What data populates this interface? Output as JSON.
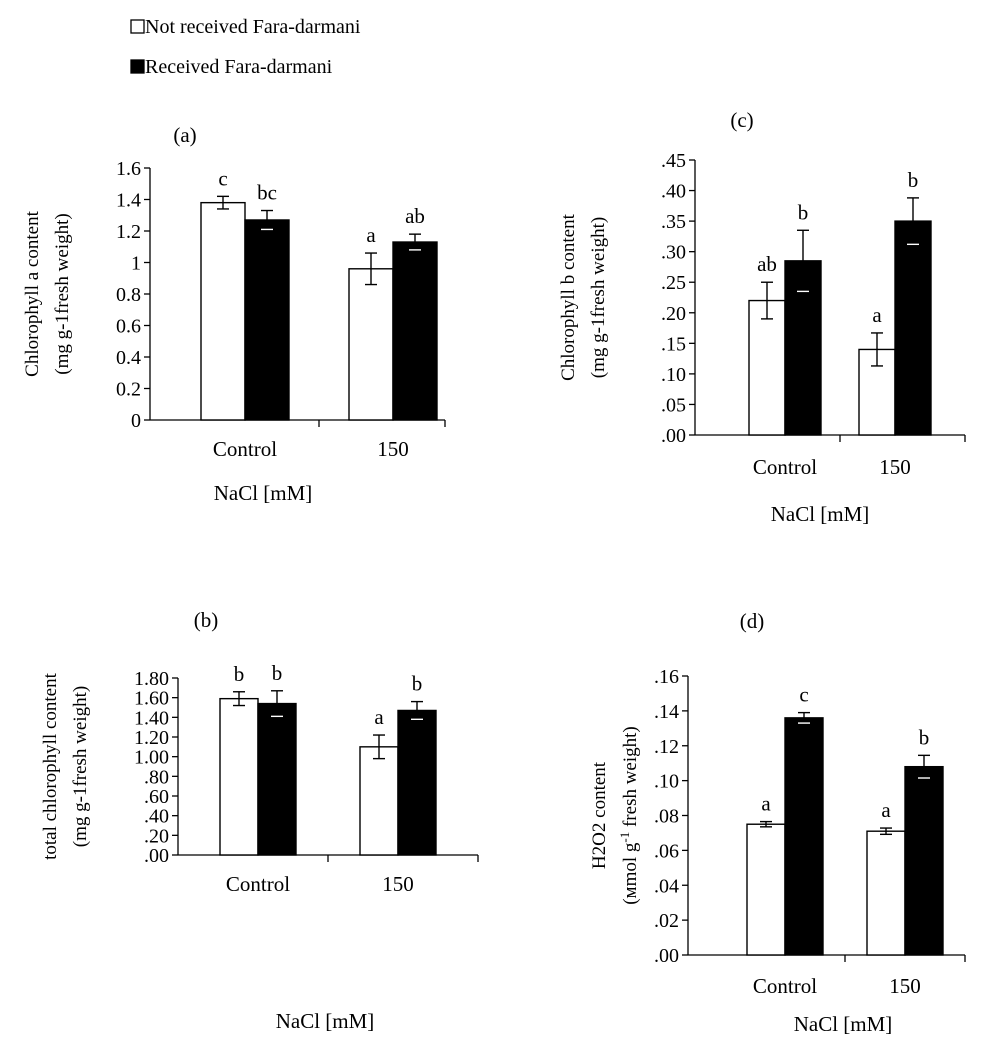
{
  "legend": [
    {
      "label": "Not received Fara-darmani",
      "color": "#ffffff"
    },
    {
      "label": "Received Fara-darmani",
      "color": "#000000"
    }
  ],
  "chart_data": [
    {
      "id": "a",
      "type": "bar",
      "panel_label": "(a)",
      "categories": [
        "Control",
        "150"
      ],
      "xlabel": "NaCl [mM]",
      "ylabel": [
        "Chlorophyll a content",
        "(mg g-1fresh weight)"
      ],
      "ylim": [
        0,
        1.6
      ],
      "yticks": [
        "0",
        "0.2",
        "0.4",
        "0.6",
        "0.8",
        "1",
        "1.2",
        "1.4",
        "1.6"
      ],
      "series": [
        {
          "name": "Not received Fara-darmani",
          "color": "#ffffff",
          "values": [
            1.38,
            0.96
          ],
          "errors": [
            0.04,
            0.1
          ],
          "letters": [
            "c",
            "a"
          ]
        },
        {
          "name": "Received Fara-darmani",
          "color": "#000000",
          "values": [
            1.27,
            1.13
          ],
          "errors": [
            0.06,
            0.05
          ],
          "letters": [
            "bc",
            "ab"
          ]
        }
      ]
    },
    {
      "id": "c",
      "type": "bar",
      "panel_label": "(c)",
      "categories": [
        "Control",
        "150"
      ],
      "xlabel": "NaCl [mM]",
      "ylabel": [
        "Chlorophyll  b content",
        "(mg g-1fresh weight)"
      ],
      "ylim": [
        0,
        0.45
      ],
      "yticks": [
        ".00",
        ".05",
        ".10",
        ".15",
        ".20",
        ".25",
        ".30",
        ".35",
        ".40",
        ".45"
      ],
      "series": [
        {
          "name": "Not received Fara-darmani",
          "color": "#ffffff",
          "values": [
            0.22,
            0.14
          ],
          "errors": [
            0.03,
            0.027
          ],
          "letters": [
            "ab",
            "a"
          ]
        },
        {
          "name": "Received Fara-darmani",
          "color": "#000000",
          "values": [
            0.285,
            0.35
          ],
          "errors": [
            0.05,
            0.038
          ],
          "letters": [
            "b",
            "b"
          ]
        }
      ]
    },
    {
      "id": "b",
      "type": "bar",
      "panel_label": "(b)",
      "categories": [
        "Control",
        "150"
      ],
      "xlabel": "NaCl [mM]",
      "ylabel": [
        "total chlorophyll content",
        "(mg g-1fresh weight)"
      ],
      "ylim": [
        0,
        1.8
      ],
      "yticks": [
        ".00",
        ".20",
        ".40",
        ".60",
        ".80",
        "1.00",
        "1.20",
        "1.40",
        "1.60",
        "1.80"
      ],
      "series": [
        {
          "name": "Not received Fara-darmani",
          "color": "#ffffff",
          "values": [
            1.59,
            1.1
          ],
          "errors": [
            0.07,
            0.12
          ],
          "letters": [
            "b",
            "a"
          ]
        },
        {
          "name": "Received Fara-darmani",
          "color": "#000000",
          "values": [
            1.54,
            1.47
          ],
          "errors": [
            0.13,
            0.09
          ],
          "letters": [
            "b",
            "b"
          ]
        }
      ]
    },
    {
      "id": "d",
      "type": "bar",
      "panel_label": "(d)",
      "categories": [
        "Control",
        "150"
      ],
      "xlabel": "NaCl [mM]",
      "ylabel": [
        "H2O2 content",
        "(мmol g-1 fresh weight)"
      ],
      "ylim": [
        0,
        0.16
      ],
      "yticks": [
        ".00",
        ".02",
        ".04",
        ".06",
        ".08",
        ".10",
        ".12",
        ".14",
        ".16"
      ],
      "series": [
        {
          "name": "Not received Fara-darmani",
          "color": "#ffffff",
          "values": [
            0.075,
            0.071
          ],
          "errors": [
            0.0015,
            0.0018
          ],
          "letters": [
            "a",
            "a"
          ]
        },
        {
          "name": "Received Fara-darmani",
          "color": "#000000",
          "values": [
            0.136,
            0.108
          ],
          "errors": [
            0.003,
            0.0065
          ],
          "letters": [
            "c",
            "b"
          ]
        }
      ]
    }
  ]
}
